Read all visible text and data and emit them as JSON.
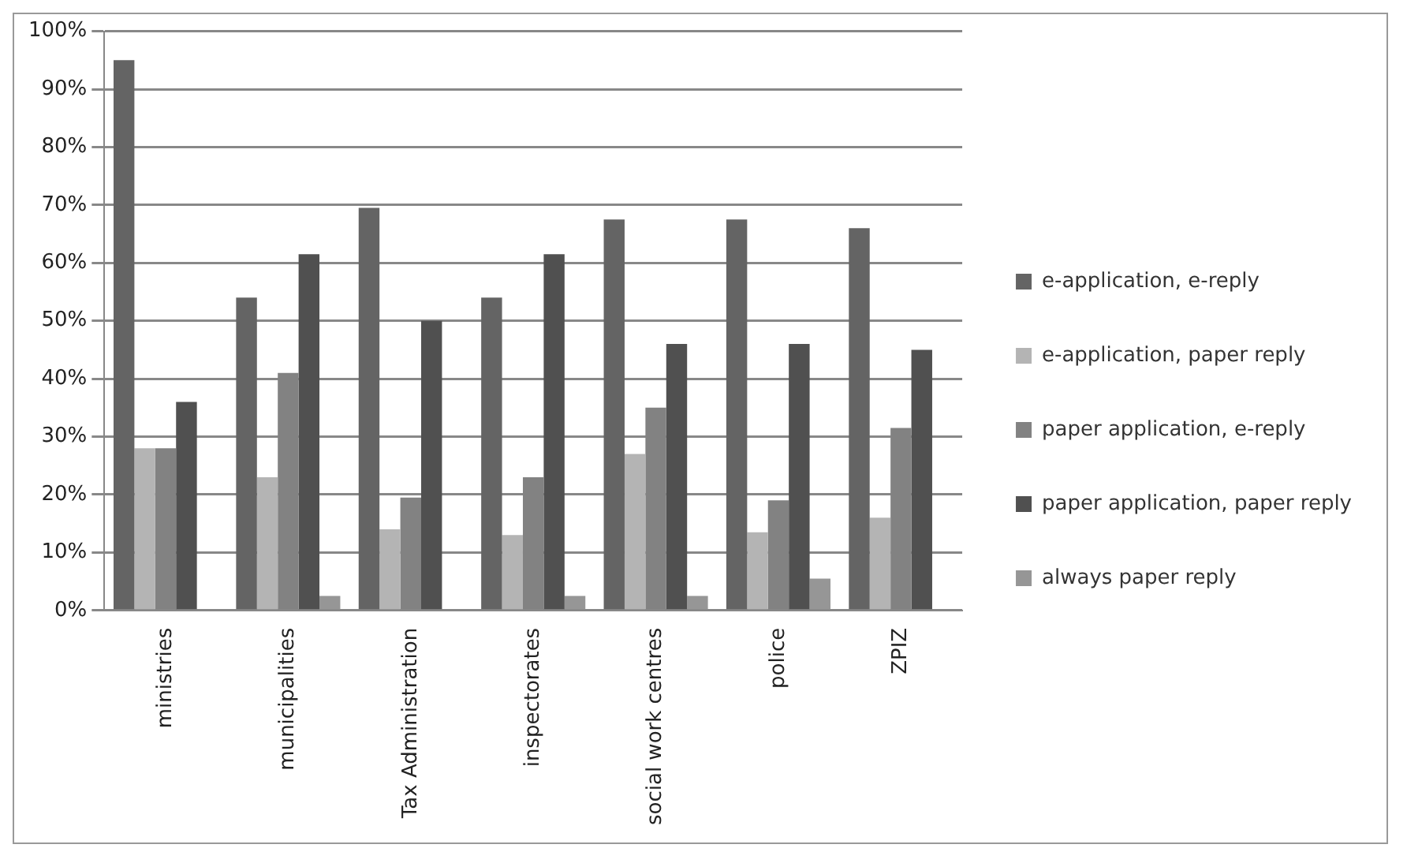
{
  "chart_data": {
    "type": "bar",
    "categories": [
      "ministries",
      "municipalities",
      "Tax Administration",
      "inspectorates",
      "social work centres",
      "police",
      "ZPIZ"
    ],
    "series": [
      {
        "name": "e-application, e-reply",
        "color": "#646464",
        "values": [
          95,
          54,
          69.5,
          54,
          67.5,
          67.5,
          66
        ]
      },
      {
        "name": "e-application, paper reply",
        "color": "#b4b4b4",
        "values": [
          28,
          23,
          14,
          13,
          27,
          13.5,
          16
        ]
      },
      {
        "name": "paper application, e-reply",
        "color": "#828282",
        "values": [
          28,
          41,
          19.5,
          23,
          35,
          19,
          31.5
        ]
      },
      {
        "name": "paper application, paper reply",
        "color": "#505050",
        "values": [
          36,
          61.5,
          50,
          61.5,
          46,
          46,
          45
        ]
      },
      {
        "name": "always paper reply",
        "color": "#969696",
        "values": [
          0,
          2.5,
          0,
          2.5,
          2.5,
          5.5,
          0
        ]
      }
    ],
    "ylim": [
      0,
      100
    ],
    "yticks": [
      {
        "value": 0,
        "label": "0%"
      },
      {
        "value": 10,
        "label": "10%"
      },
      {
        "value": 20,
        "label": "20%"
      },
      {
        "value": 30,
        "label": "30%"
      },
      {
        "value": 40,
        "label": "40%"
      },
      {
        "value": 50,
        "label": "50%"
      },
      {
        "value": 60,
        "label": "60%"
      },
      {
        "value": 70,
        "label": "70%"
      },
      {
        "value": 80,
        "label": "80%"
      },
      {
        "value": 90,
        "label": "90%"
      },
      {
        "value": 100,
        "label": "100%"
      }
    ],
    "grid": "y",
    "legend": "right"
  }
}
